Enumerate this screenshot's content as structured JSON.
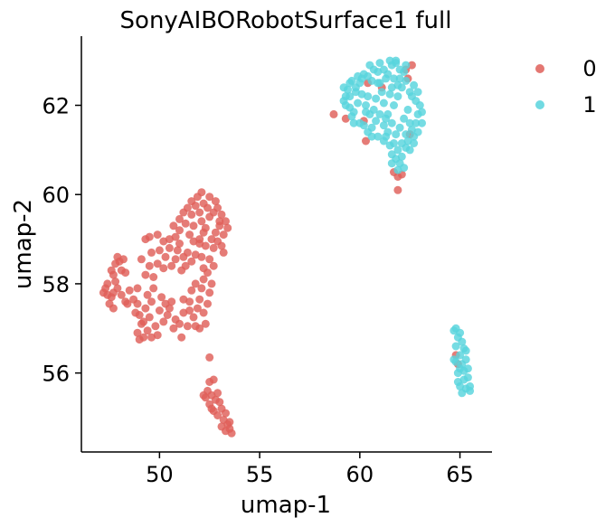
{
  "chart_data": {
    "type": "scatter",
    "title": "SonyAIBORobotSurface1 full",
    "xlabel": "umap-1",
    "ylabel": "umap-2",
    "xlim": [
      46.1,
      66.6
    ],
    "ylim": [
      54.23,
      63.55
    ],
    "xticks": [
      50,
      55,
      60,
      65
    ],
    "yticks": [
      56,
      58,
      60,
      62
    ],
    "grid": false,
    "legend_position": "top-right",
    "colors": {
      "0": "#df5f59",
      "1": "#58d4dd"
    },
    "series": [
      {
        "name": "0",
        "points": [
          [
            47.2,
            57.8
          ],
          [
            47.4,
            57.75
          ],
          [
            47.6,
            57.7
          ],
          [
            47.3,
            57.9
          ],
          [
            47.7,
            57.8
          ],
          [
            47.9,
            57.9
          ],
          [
            48.1,
            57.75
          ],
          [
            47.5,
            57.55
          ],
          [
            47.8,
            58.05
          ],
          [
            48.3,
            57.6
          ],
          [
            47.6,
            58.3
          ],
          [
            47.8,
            58.45
          ],
          [
            48.0,
            58.5
          ],
          [
            48.2,
            58.55
          ],
          [
            47.7,
            58.2
          ],
          [
            48.1,
            58.3
          ],
          [
            47.9,
            58.6
          ],
          [
            48.3,
            58.25
          ],
          [
            47.4,
            58.0
          ],
          [
            48.5,
            57.85
          ],
          [
            48.7,
            57.65
          ],
          [
            48.4,
            57.55
          ],
          [
            47.7,
            57.45
          ],
          [
            48.9,
            57.9
          ],
          [
            48.9,
            57.55
          ],
          [
            49.0,
            57.3
          ],
          [
            49.3,
            57.45
          ],
          [
            49.6,
            57.6
          ],
          [
            49.5,
            57.25
          ],
          [
            49.1,
            57.1
          ],
          [
            48.9,
            56.9
          ],
          [
            49.2,
            56.8
          ],
          [
            49.4,
            56.95
          ],
          [
            49.8,
            57.05
          ],
          [
            49.6,
            56.8
          ],
          [
            49.0,
            56.75
          ],
          [
            49.2,
            57.15
          ],
          [
            50.0,
            57.4
          ],
          [
            50.2,
            57.15
          ],
          [
            49.9,
            56.85
          ],
          [
            49.3,
            58.2
          ],
          [
            49.5,
            58.4
          ],
          [
            49.7,
            58.15
          ],
          [
            49.9,
            58.45
          ],
          [
            50.2,
            58.35
          ],
          [
            49.1,
            58.55
          ],
          [
            49.4,
            57.75
          ],
          [
            50.3,
            57.55
          ],
          [
            50.5,
            57.45
          ],
          [
            50.4,
            57.3
          ],
          [
            50.6,
            57.6
          ],
          [
            50.8,
            57.2
          ],
          [
            50.7,
            57.0
          ],
          [
            51.0,
            57.1
          ],
          [
            51.2,
            57.35
          ],
          [
            51.1,
            56.8
          ],
          [
            51.4,
            57.05
          ],
          [
            51.5,
            57.6
          ],
          [
            51.6,
            57.85
          ],
          [
            51.2,
            57.65
          ],
          [
            51.7,
            57.25
          ],
          [
            51.9,
            57.45
          ],
          [
            52.0,
            57.65
          ],
          [
            52.1,
            57.9
          ],
          [
            52.2,
            57.35
          ],
          [
            52.3,
            57.1
          ],
          [
            52.0,
            57.0
          ],
          [
            51.8,
            57.05
          ],
          [
            52.4,
            57.55
          ],
          [
            52.5,
            57.8
          ],
          [
            52.6,
            58.0
          ],
          [
            52.4,
            58.25
          ],
          [
            52.7,
            58.4
          ],
          [
            52.5,
            58.55
          ],
          [
            52.7,
            58.8
          ],
          [
            50.3,
            58.6
          ],
          [
            50.5,
            58.8
          ],
          [
            50.6,
            58.4
          ],
          [
            50.8,
            58.55
          ],
          [
            50.9,
            58.75
          ],
          [
            51.0,
            58.9
          ],
          [
            51.2,
            58.6
          ],
          [
            51.3,
            58.4
          ],
          [
            51.4,
            58.7
          ],
          [
            51.1,
            58.3
          ],
          [
            51.6,
            58.5
          ],
          [
            51.8,
            58.65
          ],
          [
            52.0,
            58.9
          ],
          [
            52.1,
            58.6
          ],
          [
            52.2,
            58.35
          ],
          [
            50.5,
            59.0
          ],
          [
            50.8,
            59.05
          ],
          [
            51.0,
            59.2
          ],
          [
            51.3,
            59.35
          ],
          [
            51.5,
            59.1
          ],
          [
            51.7,
            59.3
          ],
          [
            51.2,
            59.6
          ],
          [
            51.0,
            59.45
          ],
          [
            50.7,
            59.3
          ],
          [
            51.4,
            59.7
          ],
          [
            51.6,
            59.55
          ],
          [
            51.8,
            59.75
          ],
          [
            52.0,
            59.6
          ],
          [
            52.2,
            59.8
          ],
          [
            52.4,
            59.7
          ],
          [
            52.1,
            59.4
          ],
          [
            52.3,
            59.25
          ],
          [
            52.5,
            59.5
          ],
          [
            52.7,
            59.6
          ],
          [
            52.9,
            59.7
          ],
          [
            53.1,
            59.55
          ],
          [
            53.3,
            59.4
          ],
          [
            53.0,
            59.3
          ],
          [
            52.8,
            59.15
          ],
          [
            53.2,
            59.1
          ],
          [
            53.4,
            59.25
          ],
          [
            52.6,
            59.0
          ],
          [
            52.9,
            58.95
          ],
          [
            53.1,
            58.85
          ],
          [
            51.9,
            59.95
          ],
          [
            52.1,
            60.05
          ],
          [
            52.5,
            59.95
          ],
          [
            52.2,
            59.15
          ],
          [
            52.0,
            59.0
          ],
          [
            52.3,
            58.85
          ],
          [
            51.7,
            58.95
          ],
          [
            49.3,
            59.0
          ],
          [
            49.5,
            59.05
          ],
          [
            49.9,
            59.1
          ],
          [
            49.6,
            58.7
          ],
          [
            50.0,
            58.75
          ],
          [
            50.2,
            58.95
          ],
          [
            51.6,
            59.85
          ],
          [
            52.8,
            59.85
          ],
          [
            53.0,
            59.4
          ],
          [
            51.8,
            58.0
          ],
          [
            52.2,
            58.1
          ],
          [
            51.5,
            57.4
          ],
          [
            53.2,
            58.7
          ],
          [
            48.8,
            57.35
          ],
          [
            49.7,
            57.9
          ],
          [
            50.1,
            57.7
          ],
          [
            52.5,
            55.8
          ],
          [
            52.7,
            55.85
          ],
          [
            52.4,
            55.6
          ],
          [
            52.6,
            55.5
          ],
          [
            52.3,
            55.45
          ],
          [
            52.8,
            55.4
          ],
          [
            52.5,
            55.3
          ],
          [
            52.9,
            55.55
          ],
          [
            53.0,
            55.35
          ],
          [
            52.7,
            55.15
          ],
          [
            53.1,
            55.2
          ],
          [
            52.9,
            55.05
          ],
          [
            53.2,
            54.95
          ],
          [
            53.3,
            55.1
          ],
          [
            53.4,
            54.85
          ],
          [
            53.1,
            54.8
          ],
          [
            53.5,
            54.9
          ],
          [
            53.3,
            54.7
          ],
          [
            53.6,
            54.65
          ],
          [
            53.5,
            54.75
          ],
          [
            52.6,
            55.2
          ],
          [
            52.2,
            55.5
          ],
          [
            52.5,
            56.35
          ],
          [
            58.7,
            61.8
          ],
          [
            59.3,
            61.7
          ],
          [
            60.2,
            61.65
          ],
          [
            60.3,
            61.2
          ],
          [
            60.4,
            62.5
          ],
          [
            61.7,
            60.5
          ],
          [
            61.9,
            60.4
          ],
          [
            61.9,
            60.1
          ],
          [
            62.1,
            60.45
          ],
          [
            62.5,
            61.35
          ],
          [
            62.6,
            62.9
          ],
          [
            62.3,
            62.8
          ],
          [
            64.8,
            56.4
          ],
          [
            64.9,
            56.2
          ],
          [
            62.4,
            62.6
          ],
          [
            61.1,
            62.4
          ]
        ]
      },
      {
        "name": "1",
        "points": [
          [
            59.2,
            62.4
          ],
          [
            59.3,
            62.2
          ],
          [
            59.4,
            62.35
          ],
          [
            59.5,
            62.5
          ],
          [
            59.6,
            62.55
          ],
          [
            59.2,
            62.1
          ],
          [
            59.3,
            62.0
          ],
          [
            59.5,
            61.95
          ],
          [
            59.7,
            61.85
          ],
          [
            59.9,
            62.05
          ],
          [
            59.8,
            62.3
          ],
          [
            60.0,
            62.5
          ],
          [
            60.1,
            62.25
          ],
          [
            60.3,
            62.0
          ],
          [
            60.5,
            61.8
          ],
          [
            60.2,
            61.55
          ],
          [
            60.0,
            61.6
          ],
          [
            59.7,
            61.6
          ],
          [
            60.4,
            61.4
          ],
          [
            60.6,
            61.5
          ],
          [
            60.8,
            61.65
          ],
          [
            60.7,
            61.9
          ],
          [
            61.0,
            61.8
          ],
          [
            61.2,
            61.55
          ],
          [
            61.3,
            61.3
          ],
          [
            61.5,
            61.1
          ],
          [
            61.6,
            60.9
          ],
          [
            61.8,
            60.8
          ],
          [
            61.9,
            61.0
          ],
          [
            62.0,
            60.7
          ],
          [
            62.1,
            60.85
          ],
          [
            62.3,
            61.05
          ],
          [
            62.4,
            61.2
          ],
          [
            62.6,
            61.45
          ],
          [
            62.8,
            61.6
          ],
          [
            62.9,
            61.8
          ],
          [
            63.0,
            62.0
          ],
          [
            62.8,
            62.1
          ],
          [
            62.9,
            62.3
          ],
          [
            62.7,
            62.45
          ],
          [
            62.6,
            62.2
          ],
          [
            62.4,
            61.9
          ],
          [
            62.2,
            61.7
          ],
          [
            62.0,
            61.5
          ],
          [
            61.8,
            61.35
          ],
          [
            61.6,
            61.6
          ],
          [
            61.4,
            61.8
          ],
          [
            61.2,
            62.05
          ],
          [
            61.5,
            62.25
          ],
          [
            61.7,
            62.0
          ],
          [
            61.9,
            62.2
          ],
          [
            62.1,
            62.4
          ],
          [
            62.3,
            62.55
          ],
          [
            62.5,
            62.3
          ],
          [
            61.1,
            62.3
          ],
          [
            60.9,
            62.5
          ],
          [
            60.6,
            62.55
          ],
          [
            60.4,
            62.65
          ],
          [
            60.2,
            62.7
          ],
          [
            60.5,
            62.9
          ],
          [
            60.7,
            62.8
          ],
          [
            60.9,
            62.75
          ],
          [
            61.0,
            62.95
          ],
          [
            61.2,
            62.8
          ],
          [
            61.4,
            62.7
          ],
          [
            61.6,
            62.9
          ],
          [
            61.8,
            62.95
          ],
          [
            62.0,
            62.8
          ],
          [
            61.5,
            63.0
          ],
          [
            61.3,
            62.6
          ],
          [
            61.7,
            62.6
          ],
          [
            62.0,
            62.6
          ],
          [
            62.2,
            62.75
          ],
          [
            61.9,
            62.45
          ],
          [
            61.6,
            62.4
          ],
          [
            62.3,
            62.9
          ],
          [
            61.8,
            63.0
          ],
          [
            61.6,
            60.7
          ],
          [
            61.9,
            60.55
          ],
          [
            62.2,
            60.6
          ],
          [
            62.5,
            61.0
          ],
          [
            62.7,
            61.15
          ],
          [
            62.3,
            61.35
          ],
          [
            62.1,
            61.15
          ],
          [
            61.7,
            61.15
          ],
          [
            61.4,
            61.4
          ],
          [
            61.2,
            61.2
          ],
          [
            60.9,
            61.3
          ],
          [
            60.6,
            61.3
          ],
          [
            60.3,
            61.85
          ],
          [
            59.6,
            61.75
          ],
          [
            59.5,
            62.2
          ],
          [
            60.1,
            62.6
          ],
          [
            59.9,
            62.65
          ],
          [
            62.9,
            61.4
          ],
          [
            63.1,
            61.6
          ],
          [
            63.1,
            61.85
          ],
          [
            62.7,
            61.3
          ],
          [
            62.5,
            61.6
          ],
          [
            61.3,
            61.7
          ],
          [
            60.8,
            62.15
          ],
          [
            60.4,
            62.2
          ],
          [
            59.8,
            62.4
          ],
          [
            61.0,
            62.5
          ],
          [
            64.7,
            56.95
          ],
          [
            64.8,
            57.0
          ],
          [
            64.9,
            56.8
          ],
          [
            64.8,
            56.6
          ],
          [
            64.7,
            56.3
          ],
          [
            65.0,
            56.9
          ],
          [
            65.1,
            56.7
          ],
          [
            65.2,
            56.55
          ],
          [
            65.0,
            56.4
          ],
          [
            65.1,
            56.2
          ],
          [
            64.9,
            56.0
          ],
          [
            65.2,
            56.05
          ],
          [
            65.3,
            56.3
          ],
          [
            65.4,
            56.1
          ],
          [
            65.2,
            55.85
          ],
          [
            65.3,
            55.65
          ],
          [
            65.5,
            55.7
          ],
          [
            65.5,
            55.6
          ],
          [
            65.4,
            55.9
          ],
          [
            65.0,
            55.7
          ],
          [
            65.1,
            55.55
          ],
          [
            64.9,
            55.8
          ],
          [
            65.3,
            56.5
          ],
          [
            65.0,
            56.1
          ],
          [
            64.8,
            56.25
          ]
        ]
      }
    ]
  }
}
